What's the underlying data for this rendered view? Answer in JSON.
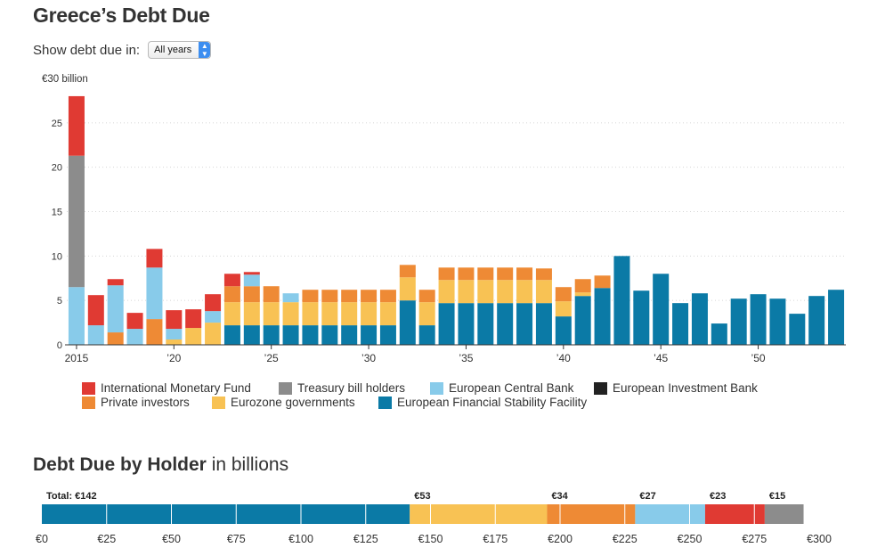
{
  "header": {
    "title": "Greece’s Debt Due"
  },
  "filter": {
    "label": "Show debt due in:",
    "selected": "All years"
  },
  "colors": {
    "International Monetary Fund": "#e03a33",
    "Treasury bill holders": "#8c8c8c",
    "European Central Bank": "#88cbea",
    "European Investment Bank": "#222222",
    "Private investors": "#ee8a35",
    "Eurozone governments": "#f8c254",
    "European Financial Stability Facility": "#0b7aa6"
  },
  "chart_data": [
    {
      "type": "bar",
      "stacked": true,
      "title": "Greece’s Debt Due",
      "ylabel": "€30 billion",
      "ylim": [
        0,
        30
      ],
      "yticks": [
        0,
        5,
        10,
        15,
        20,
        25
      ],
      "ytick_labels": [
        "0",
        "5",
        "10",
        "15",
        "20",
        "25"
      ],
      "xtick_labels": [
        "2015",
        "’20",
        "’25",
        "’30",
        "’35",
        "’40",
        "’45",
        "’50"
      ],
      "xtick_years": [
        2015,
        2020,
        2025,
        2030,
        2035,
        2040,
        2045,
        2050
      ],
      "grid": true,
      "legend": "bottom",
      "categories": [
        2015,
        2016,
        2017,
        2018,
        2019,
        2020,
        2021,
        2022,
        2023,
        2024,
        2025,
        2026,
        2027,
        2028,
        2029,
        2030,
        2031,
        2032,
        2033,
        2034,
        2035,
        2036,
        2037,
        2038,
        2039,
        2040,
        2041,
        2042,
        2043,
        2044,
        2045,
        2046,
        2047,
        2048,
        2049,
        2050,
        2051,
        2052,
        2053,
        2054
      ],
      "series": [
        {
          "name": "European Financial Stability Facility",
          "values": [
            0,
            0,
            0,
            0,
            0,
            0,
            0,
            0,
            2.2,
            2.2,
            2.2,
            2.2,
            2.2,
            2.2,
            2.2,
            2.2,
            2.2,
            5.0,
            2.2,
            4.7,
            4.7,
            4.7,
            4.7,
            4.7,
            4.7,
            3.2,
            5.5,
            6.4,
            10.0,
            6.1,
            8.0,
            4.7,
            5.8,
            2.4,
            5.2,
            5.7,
            5.2,
            3.5,
            5.5,
            6.2
          ]
        },
        {
          "name": "Eurozone governments",
          "values": [
            0,
            0,
            0,
            0,
            0,
            0.6,
            1.9,
            2.5,
            2.6,
            2.6,
            2.6,
            2.6,
            2.6,
            2.6,
            2.6,
            2.6,
            2.6,
            2.6,
            2.6,
            2.6,
            2.6,
            2.6,
            2.6,
            2.6,
            2.6,
            1.7,
            0.4,
            0,
            0,
            0,
            0,
            0,
            0,
            0,
            0,
            0,
            0,
            0,
            0,
            0
          ]
        },
        {
          "name": "Private investors",
          "values": [
            0,
            0,
            1.4,
            0,
            2.9,
            0,
            0,
            0,
            1.8,
            1.8,
            1.8,
            0,
            1.4,
            1.4,
            1.4,
            1.4,
            1.4,
            1.4,
            1.4,
            1.4,
            1.4,
            1.4,
            1.4,
            1.4,
            1.3,
            1.6,
            1.5,
            1.4,
            0,
            0,
            0,
            0,
            0,
            0,
            0,
            0,
            0,
            0,
            0,
            0
          ]
        },
        {
          "name": "European Central Bank",
          "values": [
            6.5,
            2.2,
            5.3,
            1.8,
            5.8,
            1.2,
            0,
            1.3,
            0,
            1.3,
            0,
            1.0,
            0,
            0,
            0,
            0,
            0,
            0,
            0,
            0,
            0,
            0,
            0,
            0,
            0,
            0,
            0,
            0,
            0,
            0,
            0,
            0,
            0,
            0,
            0,
            0,
            0,
            0,
            0,
            0
          ]
        },
        {
          "name": "European Investment Bank",
          "values": [
            0,
            0,
            0,
            0,
            0,
            0,
            0,
            0,
            0,
            0,
            0,
            0,
            0,
            0,
            0,
            0,
            0,
            0,
            0,
            0,
            0,
            0,
            0,
            0,
            0,
            0,
            0,
            0,
            0,
            0,
            0,
            0,
            0,
            0,
            0,
            0,
            0,
            0,
            0,
            0
          ]
        },
        {
          "name": "Treasury bill holders",
          "values": [
            14.8,
            0,
            0,
            0,
            0,
            0,
            0,
            0,
            0,
            0,
            0,
            0,
            0,
            0,
            0,
            0,
            0,
            0,
            0,
            0,
            0,
            0,
            0,
            0,
            0,
            0,
            0,
            0,
            0,
            0,
            0,
            0,
            0,
            0,
            0,
            0,
            0,
            0,
            0,
            0
          ]
        },
        {
          "name": "International Monetary Fund",
          "values": [
            6.7,
            3.4,
            0.7,
            1.8,
            2.1,
            2.1,
            2.1,
            1.9,
            1.4,
            0.3,
            0,
            0,
            0,
            0,
            0,
            0,
            0,
            0,
            0,
            0,
            0,
            0,
            0,
            0,
            0,
            0,
            0,
            0,
            0,
            0,
            0,
            0,
            0,
            0,
            0,
            0,
            0,
            0,
            0,
            0
          ]
        }
      ]
    },
    {
      "type": "bar",
      "orientation": "horizontal",
      "stacked": true,
      "title": "Debt Due by Holder",
      "subtitle": "in billions",
      "xlim": [
        0,
        300
      ],
      "xticks": [
        0,
        25,
        50,
        75,
        100,
        125,
        150,
        175,
        200,
        225,
        250,
        275,
        300
      ],
      "xtick_labels": [
        "€0",
        "€25",
        "€50",
        "€75",
        "€100",
        "€125",
        "€150",
        "€175",
        "€200",
        "€225",
        "€250",
        "€275",
        "€300"
      ],
      "segments": [
        {
          "name": "European Financial Stability Facility",
          "value": 142,
          "label": "Total: €142"
        },
        {
          "name": "Eurozone governments",
          "value": 53,
          "label": "€53"
        },
        {
          "name": "Private investors",
          "value": 34,
          "label": "€34"
        },
        {
          "name": "European Central Bank",
          "value": 27,
          "label": "€27"
        },
        {
          "name": "International Monetary Fund",
          "value": 23,
          "label": "€23"
        },
        {
          "name": "Treasury bill holders",
          "value": 15,
          "label": "€15"
        }
      ]
    }
  ],
  "legend": {
    "items": [
      "International Monetary Fund",
      "Treasury bill holders",
      "European Central Bank",
      "European Investment Bank",
      "Private investors",
      "Eurozone governments",
      "European Financial Stability Facility"
    ]
  },
  "section2": {
    "title": "Debt Due by Holder",
    "subtitle": "in billions"
  }
}
